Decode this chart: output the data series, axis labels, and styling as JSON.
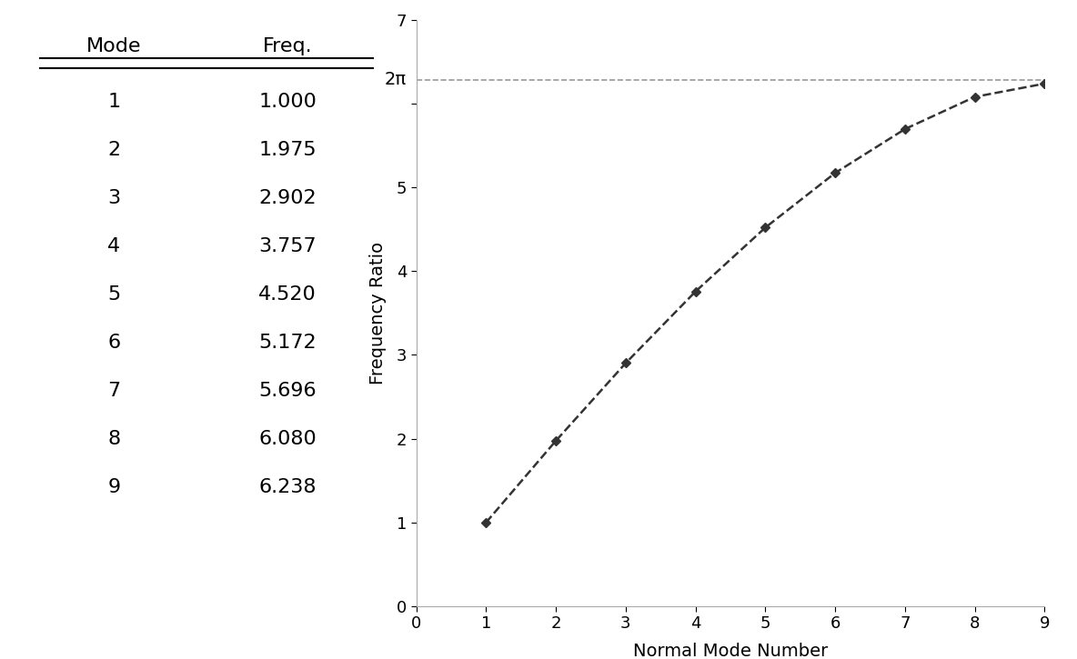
{
  "modes": [
    1,
    2,
    3,
    4,
    5,
    6,
    7,
    8,
    9
  ],
  "freqs": [
    1.0,
    1.975,
    2.902,
    3.757,
    4.52,
    5.172,
    5.696,
    6.08,
    6.238
  ],
  "table_header_mode": "Mode",
  "table_header_freq": "Freq.",
  "xlabel": "Normal Mode Number",
  "ylabel": "Frequency Ratio",
  "xlim": [
    0,
    9
  ],
  "ylim": [
    0,
    7
  ],
  "yticks": [
    0,
    1,
    2,
    3,
    4,
    5,
    6,
    7
  ],
  "xticks": [
    0,
    1,
    2,
    3,
    4,
    5,
    6,
    7,
    8,
    9
  ],
  "two_pi": 6.283185307179586,
  "two_pi_label": "2π",
  "line_color": "#333333",
  "hline_color": "#999999",
  "background_color": "#ffffff",
  "marker_style": "D",
  "marker_size": 5,
  "line_style": "--",
  "line_width": 1.8,
  "axis_label_fontsize": 14,
  "tick_fontsize": 13,
  "table_fontsize": 16
}
